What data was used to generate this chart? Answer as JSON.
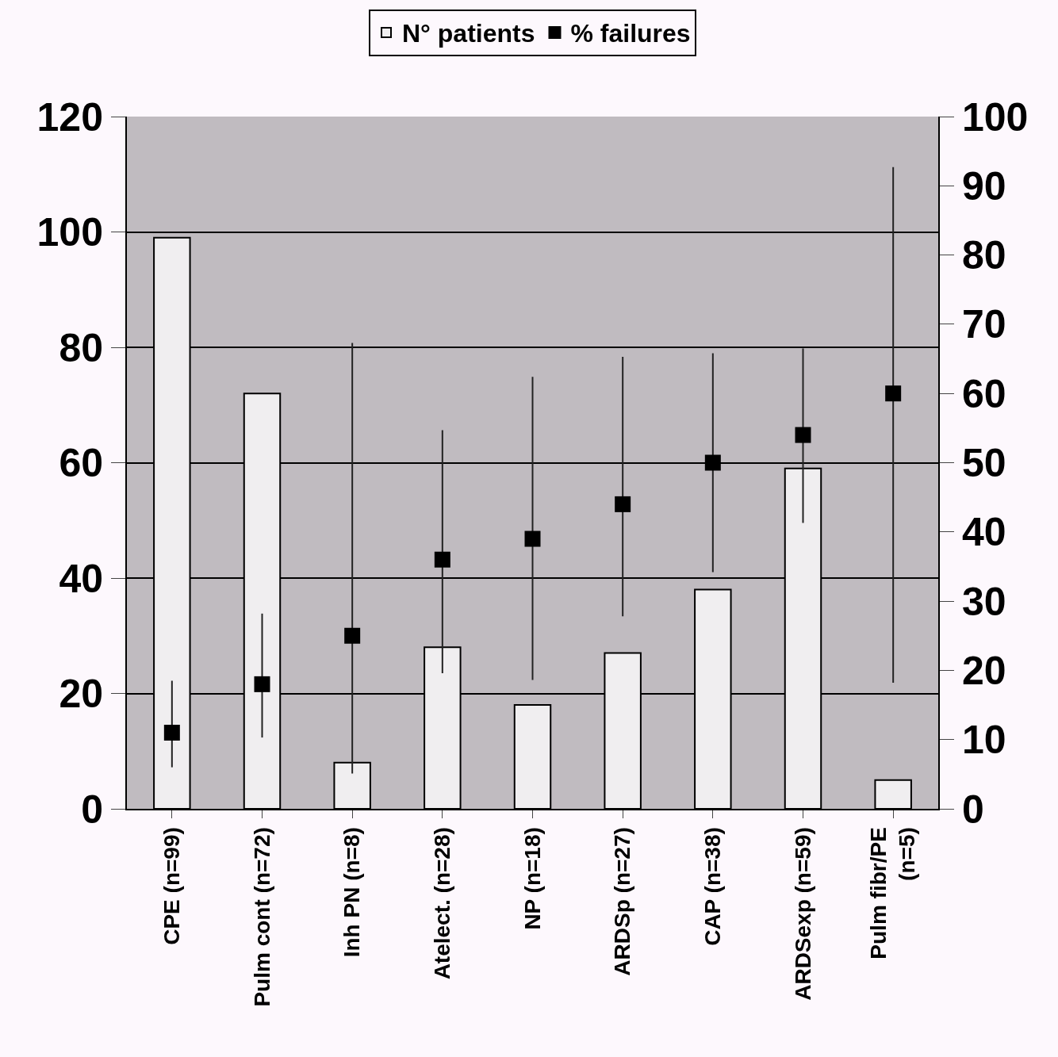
{
  "chart_data": {
    "type": "bar",
    "categories": [
      "CPE (n=99)",
      "Pulm cont (n=72)",
      "Inh PN (n=8)",
      "Atelect. (n=28)",
      "NP (n=18)",
      "ARDSp (n=27)",
      "CAP (n=38)",
      "ARDSexp (n=59)",
      "Pulm fibr/PE\n(n=5)"
    ],
    "series": [
      {
        "name": "N° patients",
        "color": "#f0eef0",
        "values": [
          99,
          72,
          8,
          28,
          18,
          27,
          38,
          59,
          5
        ]
      },
      {
        "name": "% failures",
        "type": "scatter",
        "axis": "y2",
        "color": "#000000",
        "marker": "square",
        "values": [
          11,
          18,
          25,
          36,
          39,
          44,
          50,
          54,
          60
        ],
        "errors": [
          [
            6,
            18.5
          ],
          [
            10.3,
            28.2
          ],
          [
            5.1,
            67.3
          ],
          [
            19.6,
            54.7
          ],
          [
            18.6,
            62.4
          ],
          [
            27.8,
            65.3
          ],
          [
            34.2,
            65.8
          ],
          [
            41.3,
            66.5
          ],
          [
            18.2,
            92.7
          ]
        ]
      }
    ],
    "ylim": [
      0,
      120
    ],
    "yticks": [
      0,
      20,
      40,
      60,
      80,
      100,
      120
    ],
    "y2lim": [
      0,
      100
    ],
    "y2ticks": [
      0,
      10,
      20,
      30,
      40,
      50,
      60,
      70,
      80,
      90,
      100
    ],
    "grid": "y",
    "legend": "top"
  }
}
